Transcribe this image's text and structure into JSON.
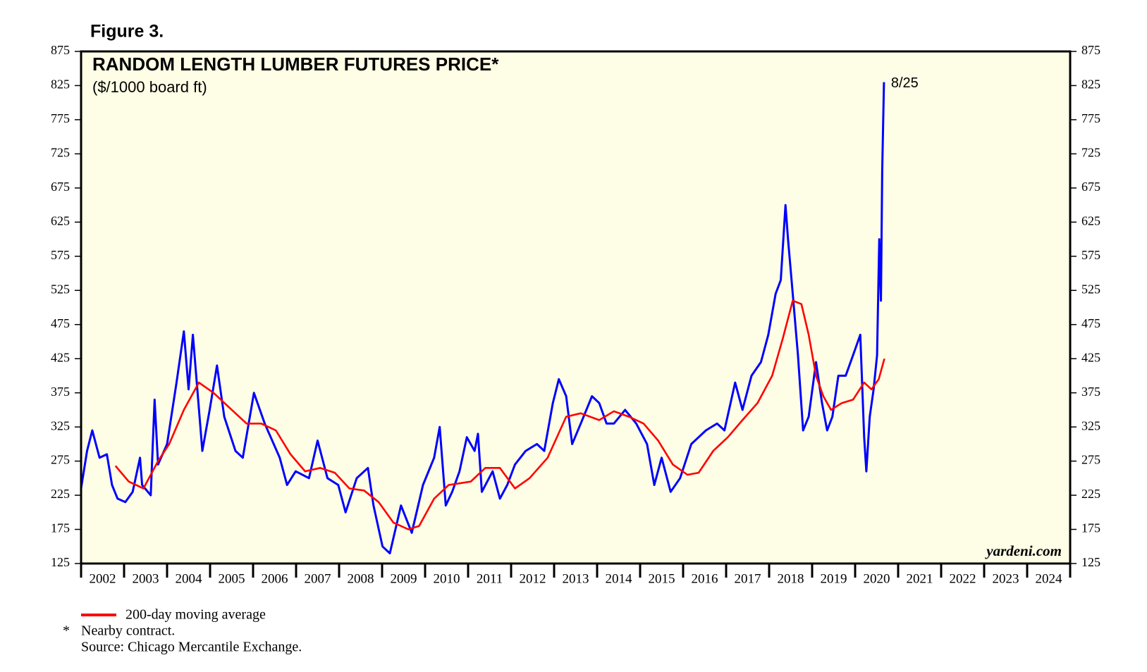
{
  "chart_data": {
    "type": "line",
    "figure_label": "Figure 3.",
    "title": "RANDOM LENGTH LUMBER FUTURES PRICE*",
    "subtitle": "($/1000 board ft)",
    "watermark": "yardeni.com",
    "annotation": "8/25",
    "footnote": {
      "symbol": "*",
      "text": "Nearby contract."
    },
    "source": "Source: Chicago Mercantile Exchange.",
    "xlim": [
      2002,
      2025
    ],
    "xticks": [
      2002,
      2003,
      2004,
      2005,
      2006,
      2007,
      2008,
      2009,
      2010,
      2011,
      2012,
      2013,
      2014,
      2015,
      2016,
      2017,
      2018,
      2019,
      2020,
      2021,
      2022,
      2023,
      2024
    ],
    "ylim": [
      125,
      875
    ],
    "yticks": [
      125,
      175,
      225,
      275,
      325,
      375,
      425,
      475,
      525,
      575,
      625,
      675,
      725,
      775,
      825,
      875
    ],
    "background": "#fefde6",
    "series": [
      {
        "color": "#0000ff",
        "x": [
          2002.0,
          2002.14,
          2002.26,
          2002.43,
          2002.6,
          2002.72,
          2002.85,
          2003.03,
          2003.2,
          2003.37,
          2003.42,
          2003.62,
          2003.71,
          2003.79,
          2004.0,
          2004.22,
          2004.39,
          2004.5,
          2004.6,
          2004.82,
          2004.99,
          2005.16,
          2005.33,
          2005.59,
          2005.76,
          2006.02,
          2006.27,
          2006.62,
          2006.79,
          2006.99,
          2007.3,
          2007.5,
          2007.73,
          2007.98,
          2008.15,
          2008.41,
          2008.67,
          2008.8,
          2009.01,
          2009.18,
          2009.44,
          2009.69,
          2009.95,
          2010.21,
          2010.34,
          2010.48,
          2010.63,
          2010.8,
          2010.97,
          2011.15,
          2011.23,
          2011.32,
          2011.57,
          2011.74,
          2011.91,
          2012.09,
          2012.34,
          2012.6,
          2012.77,
          2012.97,
          2013.11,
          2013.28,
          2013.42,
          2013.62,
          2013.88,
          2014.05,
          2014.22,
          2014.39,
          2014.65,
          2014.91,
          2015.16,
          2015.33,
          2015.5,
          2015.71,
          2015.93,
          2016.19,
          2016.36,
          2016.53,
          2016.79,
          2016.96,
          2017.21,
          2017.38,
          2017.59,
          2017.81,
          2017.98,
          2018.15,
          2018.27,
          2018.38,
          2018.44,
          2018.55,
          2018.67,
          2018.79,
          2018.92,
          2019.09,
          2019.23,
          2019.35,
          2019.47,
          2019.61,
          2019.78,
          2019.95,
          2020.12,
          2020.21,
          2020.26,
          2020.34,
          2020.43,
          2020.51,
          2020.56,
          2020.6,
          2020.63,
          2020.67
        ],
        "values": [
          235,
          290,
          320,
          280,
          285,
          240,
          220,
          215,
          230,
          280,
          240,
          225,
          365,
          270,
          300,
          390,
          465,
          380,
          460,
          290,
          350,
          415,
          340,
          290,
          280,
          375,
          330,
          280,
          240,
          260,
          250,
          305,
          250,
          240,
          200,
          250,
          265,
          210,
          150,
          140,
          210,
          170,
          240,
          280,
          325,
          210,
          230,
          260,
          310,
          290,
          315,
          230,
          260,
          220,
          240,
          270,
          290,
          300,
          290,
          360,
          395,
          370,
          300,
          330,
          370,
          360,
          330,
          330,
          350,
          330,
          300,
          240,
          280,
          230,
          250,
          300,
          310,
          320,
          330,
          320,
          390,
          350,
          400,
          420,
          460,
          520,
          540,
          650,
          600,
          520,
          430,
          320,
          340,
          420,
          360,
          320,
          340,
          400,
          400,
          430,
          460,
          310,
          260,
          340,
          380,
          430,
          600,
          510,
          700,
          830
        ]
      },
      {
        "name": "200-day moving average",
        "color": "#ff0000",
        "x": [
          2002.8,
          2003.11,
          2003.45,
          2003.79,
          2004.05,
          2004.39,
          2004.74,
          2005.08,
          2005.42,
          2005.85,
          2006.19,
          2006.53,
          2006.87,
          2007.21,
          2007.56,
          2007.9,
          2008.24,
          2008.58,
          2008.92,
          2009.26,
          2009.61,
          2009.86,
          2010.21,
          2010.55,
          2011.06,
          2011.4,
          2011.74,
          2012.09,
          2012.43,
          2012.85,
          2013.28,
          2013.62,
          2014.05,
          2014.39,
          2014.74,
          2015.08,
          2015.42,
          2015.76,
          2016.1,
          2016.36,
          2016.7,
          2017.04,
          2017.38,
          2017.73,
          2018.07,
          2018.32,
          2018.55,
          2018.75,
          2018.92,
          2019.09,
          2019.26,
          2019.44,
          2019.69,
          2019.95,
          2020.21,
          2020.38,
          2020.55,
          2020.68
        ],
        "values": [
          268,
          245,
          235,
          275,
          300,
          350,
          390,
          375,
          355,
          330,
          330,
          320,
          285,
          260,
          265,
          258,
          235,
          232,
          215,
          185,
          175,
          180,
          220,
          240,
          245,
          265,
          265,
          235,
          250,
          280,
          340,
          345,
          335,
          348,
          340,
          330,
          305,
          270,
          255,
          258,
          290,
          310,
          335,
          360,
          400,
          455,
          510,
          505,
          460,
          400,
          370,
          350,
          360,
          365,
          390,
          380,
          395,
          425
        ]
      }
    ]
  }
}
